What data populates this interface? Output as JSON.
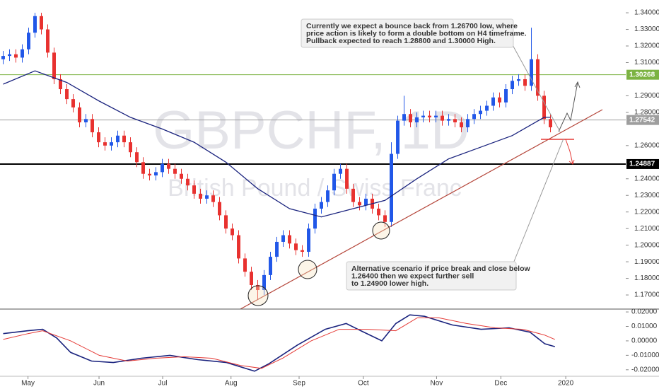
{
  "chart_data": {
    "type": "candlestick",
    "title": "GBPCHF, 1D",
    "subtitle": "British Pound / Swiss Franc",
    "xlim": [
      -0.5,
      97.83
    ],
    "xticks": [
      {
        "value": 3.9,
        "label": "May"
      },
      {
        "value": 15.06,
        "label": "Jun"
      },
      {
        "value": 25.06,
        "label": "Jul"
      },
      {
        "value": 35.8,
        "label": "Aug"
      },
      {
        "value": 46.5,
        "label": "Sep"
      },
      {
        "value": 56.6,
        "label": "Oct"
      },
      {
        "value": 68.1,
        "label": "Nov"
      },
      {
        "value": 78.2,
        "label": "Dec"
      },
      {
        "value": 88.4,
        "label": "2020"
      }
    ],
    "ylim": [
      1.1615,
      1.3477
    ],
    "yticks": [
      {
        "value": 1.17,
        "label": "1.17000"
      },
      {
        "value": 1.18,
        "label": "1.18000"
      },
      {
        "value": 1.19,
        "label": "1.19000"
      },
      {
        "value": 1.2,
        "label": "1.20000"
      },
      {
        "value": 1.21,
        "label": "1.21000"
      },
      {
        "value": 1.22,
        "label": "1.22000"
      },
      {
        "value": 1.23,
        "label": "1.23000"
      },
      {
        "value": 1.24,
        "label": "1.24000"
      },
      {
        "value": 1.26,
        "label": "1.26000"
      },
      {
        "value": 1.28,
        "label": "1.28000"
      },
      {
        "value": 1.29,
        "label": "1.29000"
      },
      {
        "value": 1.31,
        "label": "1.31000"
      },
      {
        "value": 1.32,
        "label": "1.32000"
      },
      {
        "value": 1.33,
        "label": "1.33000"
      },
      {
        "value": 1.34,
        "label": "1.34000"
      }
    ],
    "up_color": "#2157e8",
    "down_color": "#e8312f",
    "open": [
      1.312,
      1.314,
      1.315,
      1.313,
      1.318,
      1.328,
      1.338,
      1.33,
      1.316,
      1.3,
      1.294,
      1.288,
      1.283,
      1.274,
      1.276,
      1.268,
      1.262,
      1.26,
      1.262,
      1.266,
      1.262,
      1.256,
      1.25,
      1.243,
      1.242,
      1.244,
      1.249,
      1.246,
      1.243,
      1.24,
      1.236,
      1.231,
      1.228,
      1.23,
      1.226,
      1.218,
      1.21,
      1.206,
      1.192,
      1.184,
      1.176,
      1.173,
      1.182,
      1.193,
      1.202,
      1.206,
      1.201,
      1.197,
      1.196,
      1.21,
      1.222,
      1.226,
      1.233,
      1.243,
      1.246,
      1.234,
      1.226,
      1.224,
      1.228,
      1.222,
      1.218,
      1.214,
      1.255,
      1.275,
      1.279,
      1.274,
      1.277,
      1.278,
      1.277,
      1.278,
      1.275,
      1.276,
      1.274,
      1.271,
      1.276,
      1.279,
      1.281,
      1.284,
      1.289,
      1.286,
      1.294,
      1.299,
      1.3,
      1.296,
      1.312,
      1.29,
      1.276
    ],
    "high": [
      1.317,
      1.318,
      1.318,
      1.321,
      1.331,
      1.34,
      1.34,
      1.333,
      1.319,
      1.303,
      1.297,
      1.291,
      1.286,
      1.279,
      1.279,
      1.271,
      1.265,
      1.265,
      1.269,
      1.269,
      1.265,
      1.259,
      1.253,
      1.246,
      1.247,
      1.252,
      1.252,
      1.249,
      1.246,
      1.243,
      1.239,
      1.234,
      1.233,
      1.233,
      1.229,
      1.221,
      1.213,
      1.209,
      1.195,
      1.187,
      1.179,
      1.185,
      1.196,
      1.205,
      1.209,
      1.209,
      1.204,
      1.2,
      1.213,
      1.225,
      1.229,
      1.236,
      1.246,
      1.249,
      1.249,
      1.237,
      1.229,
      1.231,
      1.231,
      1.225,
      1.221,
      1.262,
      1.278,
      1.29,
      1.282,
      1.28,
      1.281,
      1.281,
      1.281,
      1.281,
      1.279,
      1.279,
      1.277,
      1.279,
      1.282,
      1.284,
      1.287,
      1.292,
      1.292,
      1.297,
      1.302,
      1.303,
      1.303,
      1.331,
      1.315,
      1.293,
      1.279
    ],
    "low": [
      1.309,
      1.311,
      1.31,
      1.31,
      1.315,
      1.325,
      1.327,
      1.313,
      1.297,
      1.291,
      1.285,
      1.28,
      1.271,
      1.271,
      1.265,
      1.259,
      1.257,
      1.257,
      1.259,
      1.259,
      1.253,
      1.247,
      1.24,
      1.239,
      1.239,
      1.241,
      1.243,
      1.24,
      1.237,
      1.233,
      1.228,
      1.225,
      1.225,
      1.223,
      1.215,
      1.207,
      1.203,
      1.189,
      1.181,
      1.173,
      1.167,
      1.17,
      1.179,
      1.19,
      1.199,
      1.198,
      1.194,
      1.193,
      1.193,
      1.207,
      1.219,
      1.223,
      1.23,
      1.24,
      1.231,
      1.223,
      1.221,
      1.221,
      1.219,
      1.215,
      1.211,
      1.211,
      1.252,
      1.272,
      1.271,
      1.271,
      1.274,
      1.274,
      1.274,
      1.272,
      1.272,
      1.271,
      1.268,
      1.268,
      1.273,
      1.276,
      1.278,
      1.281,
      1.283,
      1.283,
      1.291,
      1.296,
      1.293,
      1.293,
      1.287,
      1.273,
      1.268
    ],
    "close": [
      1.314,
      1.315,
      1.313,
      1.318,
      1.328,
      1.338,
      1.33,
      1.316,
      1.3,
      1.294,
      1.288,
      1.283,
      1.274,
      1.276,
      1.268,
      1.262,
      1.26,
      1.262,
      1.266,
      1.262,
      1.256,
      1.25,
      1.243,
      1.242,
      1.244,
      1.249,
      1.246,
      1.243,
      1.24,
      1.236,
      1.231,
      1.228,
      1.23,
      1.226,
      1.218,
      1.21,
      1.206,
      1.192,
      1.184,
      1.176,
      1.173,
      1.182,
      1.193,
      1.202,
      1.206,
      1.201,
      1.197,
      1.196,
      1.21,
      1.222,
      1.226,
      1.233,
      1.243,
      1.246,
      1.234,
      1.226,
      1.224,
      1.228,
      1.222,
      1.218,
      1.214,
      1.255,
      1.275,
      1.279,
      1.274,
      1.277,
      1.278,
      1.277,
      1.278,
      1.275,
      1.276,
      1.274,
      1.271,
      1.276,
      1.279,
      1.281,
      1.284,
      1.289,
      1.286,
      1.294,
      1.299,
      1.3,
      1.296,
      1.312,
      1.29,
      1.276,
      1.271
    ],
    "moving_average": {
      "color": "#1a237e",
      "x": [
        0,
        5,
        10,
        15,
        20,
        25,
        30,
        35,
        40,
        45,
        50,
        55,
        60,
        65,
        70,
        75,
        80,
        85,
        86
      ],
      "values": [
        1.297,
        1.305,
        1.298,
        1.287,
        1.277,
        1.27,
        1.262,
        1.25,
        1.234,
        1.222,
        1.217,
        1.222,
        1.227,
        1.24,
        1.252,
        1.259,
        1.266,
        1.277,
        1.277
      ]
    },
    "levels": [
      {
        "value": 1.30268,
        "color": "#7cb342",
        "width": 1
      },
      {
        "value": 1.27542,
        "color": "#9e9e9e",
        "width": 1
      },
      {
        "value": 1.24887,
        "color": "#000000",
        "width": 2
      }
    ],
    "annotations": [
      {
        "lines": [
          "Currently we expect a bounce back from 1.26700 low, where",
          "price action is likely to form a double bottom on H4 timeframe.",
          "Pullback expected to reach 1.28800 and 1.30000 High."
        ]
      },
      {
        "lines": [
          "Alternative scenario if price break and close below",
          "1.26400 then we expect further sell",
          "to 1.24900 lower high."
        ]
      }
    ],
    "indicator": {
      "ylim": [
        -0.0245,
        0.0215
      ],
      "yticks": [
        {
          "value": 0.02,
          "label": "0.02000"
        },
        {
          "value": 0.01,
          "label": "0.01000"
        },
        {
          "value": 0,
          "label": "0.00000"
        },
        {
          "value": -0.01,
          "label": "-0.01000"
        },
        {
          "value": -0.02,
          "label": "-0.02000"
        }
      ],
      "series": [
        {
          "color": "#1a237e",
          "x": [
            0,
            3.9,
            6.2,
            8.4,
            10.6,
            13.9,
            17.3,
            21.7,
            26.2,
            30.6,
            35.1,
            39.5,
            41.7,
            46.2,
            50.6,
            53.9,
            56.2,
            59.5,
            61.7,
            63.9,
            66.2,
            70.6,
            75.1,
            79.5,
            82.8,
            85.1,
            86.7
          ],
          "values": [
            0.005,
            0.007,
            0.008,
            0.002,
            -0.008,
            -0.014,
            -0.015,
            -0.012,
            -0.01,
            -0.013,
            -0.015,
            -0.021,
            -0.016,
            -0.003,
            0.008,
            0.012,
            0.007,
            0.0,
            0.012,
            0.018,
            0.017,
            0.011,
            0.008,
            0.009,
            0.006,
            -0.002,
            -0.004
          ]
        },
        {
          "color": "#e53935",
          "x": [
            0,
            3.9,
            6.2,
            10.6,
            15.1,
            19.5,
            23.9,
            28.4,
            32.8,
            37.3,
            40.6,
            43.9,
            48.4,
            52.8,
            57.3,
            61.7,
            65.1,
            68.4,
            72.8,
            77.3,
            81.7,
            85.1,
            86.7
          ],
          "values": [
            0.001,
            0.005,
            0.007,
            0.0,
            -0.01,
            -0.014,
            -0.012,
            -0.011,
            -0.012,
            -0.017,
            -0.019,
            -0.012,
            0.0,
            0.008,
            0.008,
            0.007,
            0.016,
            0.016,
            0.012,
            0.009,
            0.008,
            0.004,
            0.001
          ]
        }
      ]
    }
  }
}
